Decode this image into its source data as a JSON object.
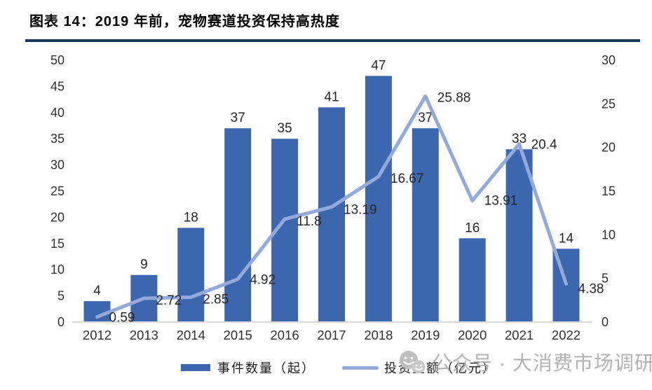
{
  "figure": {
    "title": "图表 14：2019 年前，宠物赛道投资保持高热度",
    "accent_color": "#17375E"
  },
  "chart_data": {
    "type": "bar",
    "subtype": "bar+line combo, dual axis",
    "title": "图表 14：2019 年前，宠物赛道投资保持高热度",
    "xlabel": "",
    "ylabel": "",
    "grid": false,
    "legend_position": "bottom",
    "categories": [
      "2012",
      "2013",
      "2014",
      "2015",
      "2016",
      "2017",
      "2018",
      "2019",
      "2020",
      "2021",
      "2022"
    ],
    "series": [
      {
        "name": "事件数量（起）",
        "type": "bar",
        "axis": "left",
        "color": "#3C67AF",
        "values": [
          4,
          9,
          18,
          37,
          35,
          41,
          47,
          37,
          16,
          33,
          14
        ]
      },
      {
        "name": "投资金额（亿元）",
        "type": "line",
        "axis": "right",
        "color": "#93A9DB",
        "values": [
          0.59,
          2.72,
          2.85,
          4.92,
          11.8,
          13.19,
          16.67,
          25.88,
          13.91,
          20.4,
          4.38
        ],
        "labels": [
          "0.59",
          "2.72",
          "2.85",
          "4.92",
          "11.8",
          "13.19",
          "16.67",
          "25.88",
          "13.91",
          "20.4",
          "4.38"
        ]
      }
    ],
    "axes": {
      "left": {
        "min": 0,
        "max": 50,
        "step": 5
      },
      "right": {
        "min": 0,
        "max": 30,
        "step": 5
      }
    }
  },
  "colors": {
    "axis_line": "#D9D9D9",
    "tick_text": "#303030",
    "data_label": "#262626"
  },
  "watermark": {
    "text": "公众号 · 大消费市场调研"
  }
}
